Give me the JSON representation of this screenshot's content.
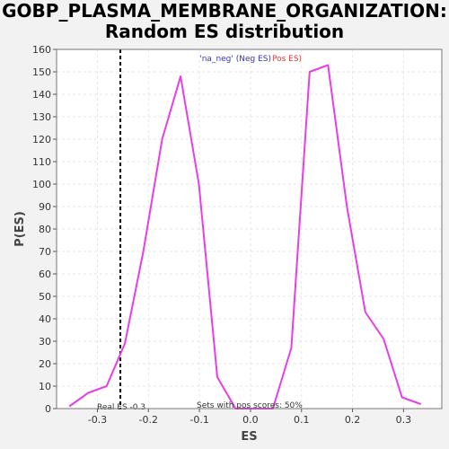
{
  "title_line1": "GOBP_PLASMA_MEMBRANE_ORGANIZATION:",
  "title_line2": "Random ES distribution",
  "chart_data": {
    "type": "line",
    "xlabel": "ES",
    "ylabel": "P(ES)",
    "xlim": [
      -0.38,
      0.375
    ],
    "ylim": [
      0,
      160
    ],
    "xticks": [
      -0.3,
      -0.2,
      -0.1,
      0.0,
      0.1,
      0.2,
      0.3
    ],
    "xtick_labels": [
      "-0.3",
      "-0.2",
      "-0.1",
      "0.0",
      "0.1",
      "0.2",
      "0.3"
    ],
    "yticks": [
      0,
      10,
      20,
      30,
      40,
      50,
      60,
      70,
      80,
      90,
      100,
      110,
      120,
      130,
      140,
      150,
      160
    ],
    "grid": true,
    "series": [
      {
        "color": "#e83de8",
        "x": [
          -0.355,
          -0.318,
          -0.282,
          -0.246,
          -0.21,
          -0.173,
          -0.137,
          -0.101,
          -0.065,
          -0.029,
          0.008,
          0.044,
          0.08,
          0.116,
          0.152,
          0.189,
          0.225,
          0.261,
          0.297,
          0.334
        ],
        "y": [
          1,
          7,
          10,
          29,
          70,
          120,
          148,
          100,
          14,
          0,
          0,
          0,
          27,
          150,
          153,
          90,
          43,
          31,
          5,
          2
        ]
      }
    ],
    "real_es": -0.255,
    "annotations": {
      "real_es": "Real ES -0.3",
      "pos_scores": "Sets with pos scores: 50%"
    },
    "legend": {
      "position": "top-center",
      "neg_label": "'na_neg' (Neg ES)",
      "neg_color": "#3333cc",
      "pos_label": "Pos ES)",
      "pos_color": "#ee3333"
    },
    "colors": {
      "line": "#e83de8",
      "plot_bg": "#ffffff",
      "page_bg": "#f2f2f2",
      "grid": "#e6e6e6"
    }
  }
}
